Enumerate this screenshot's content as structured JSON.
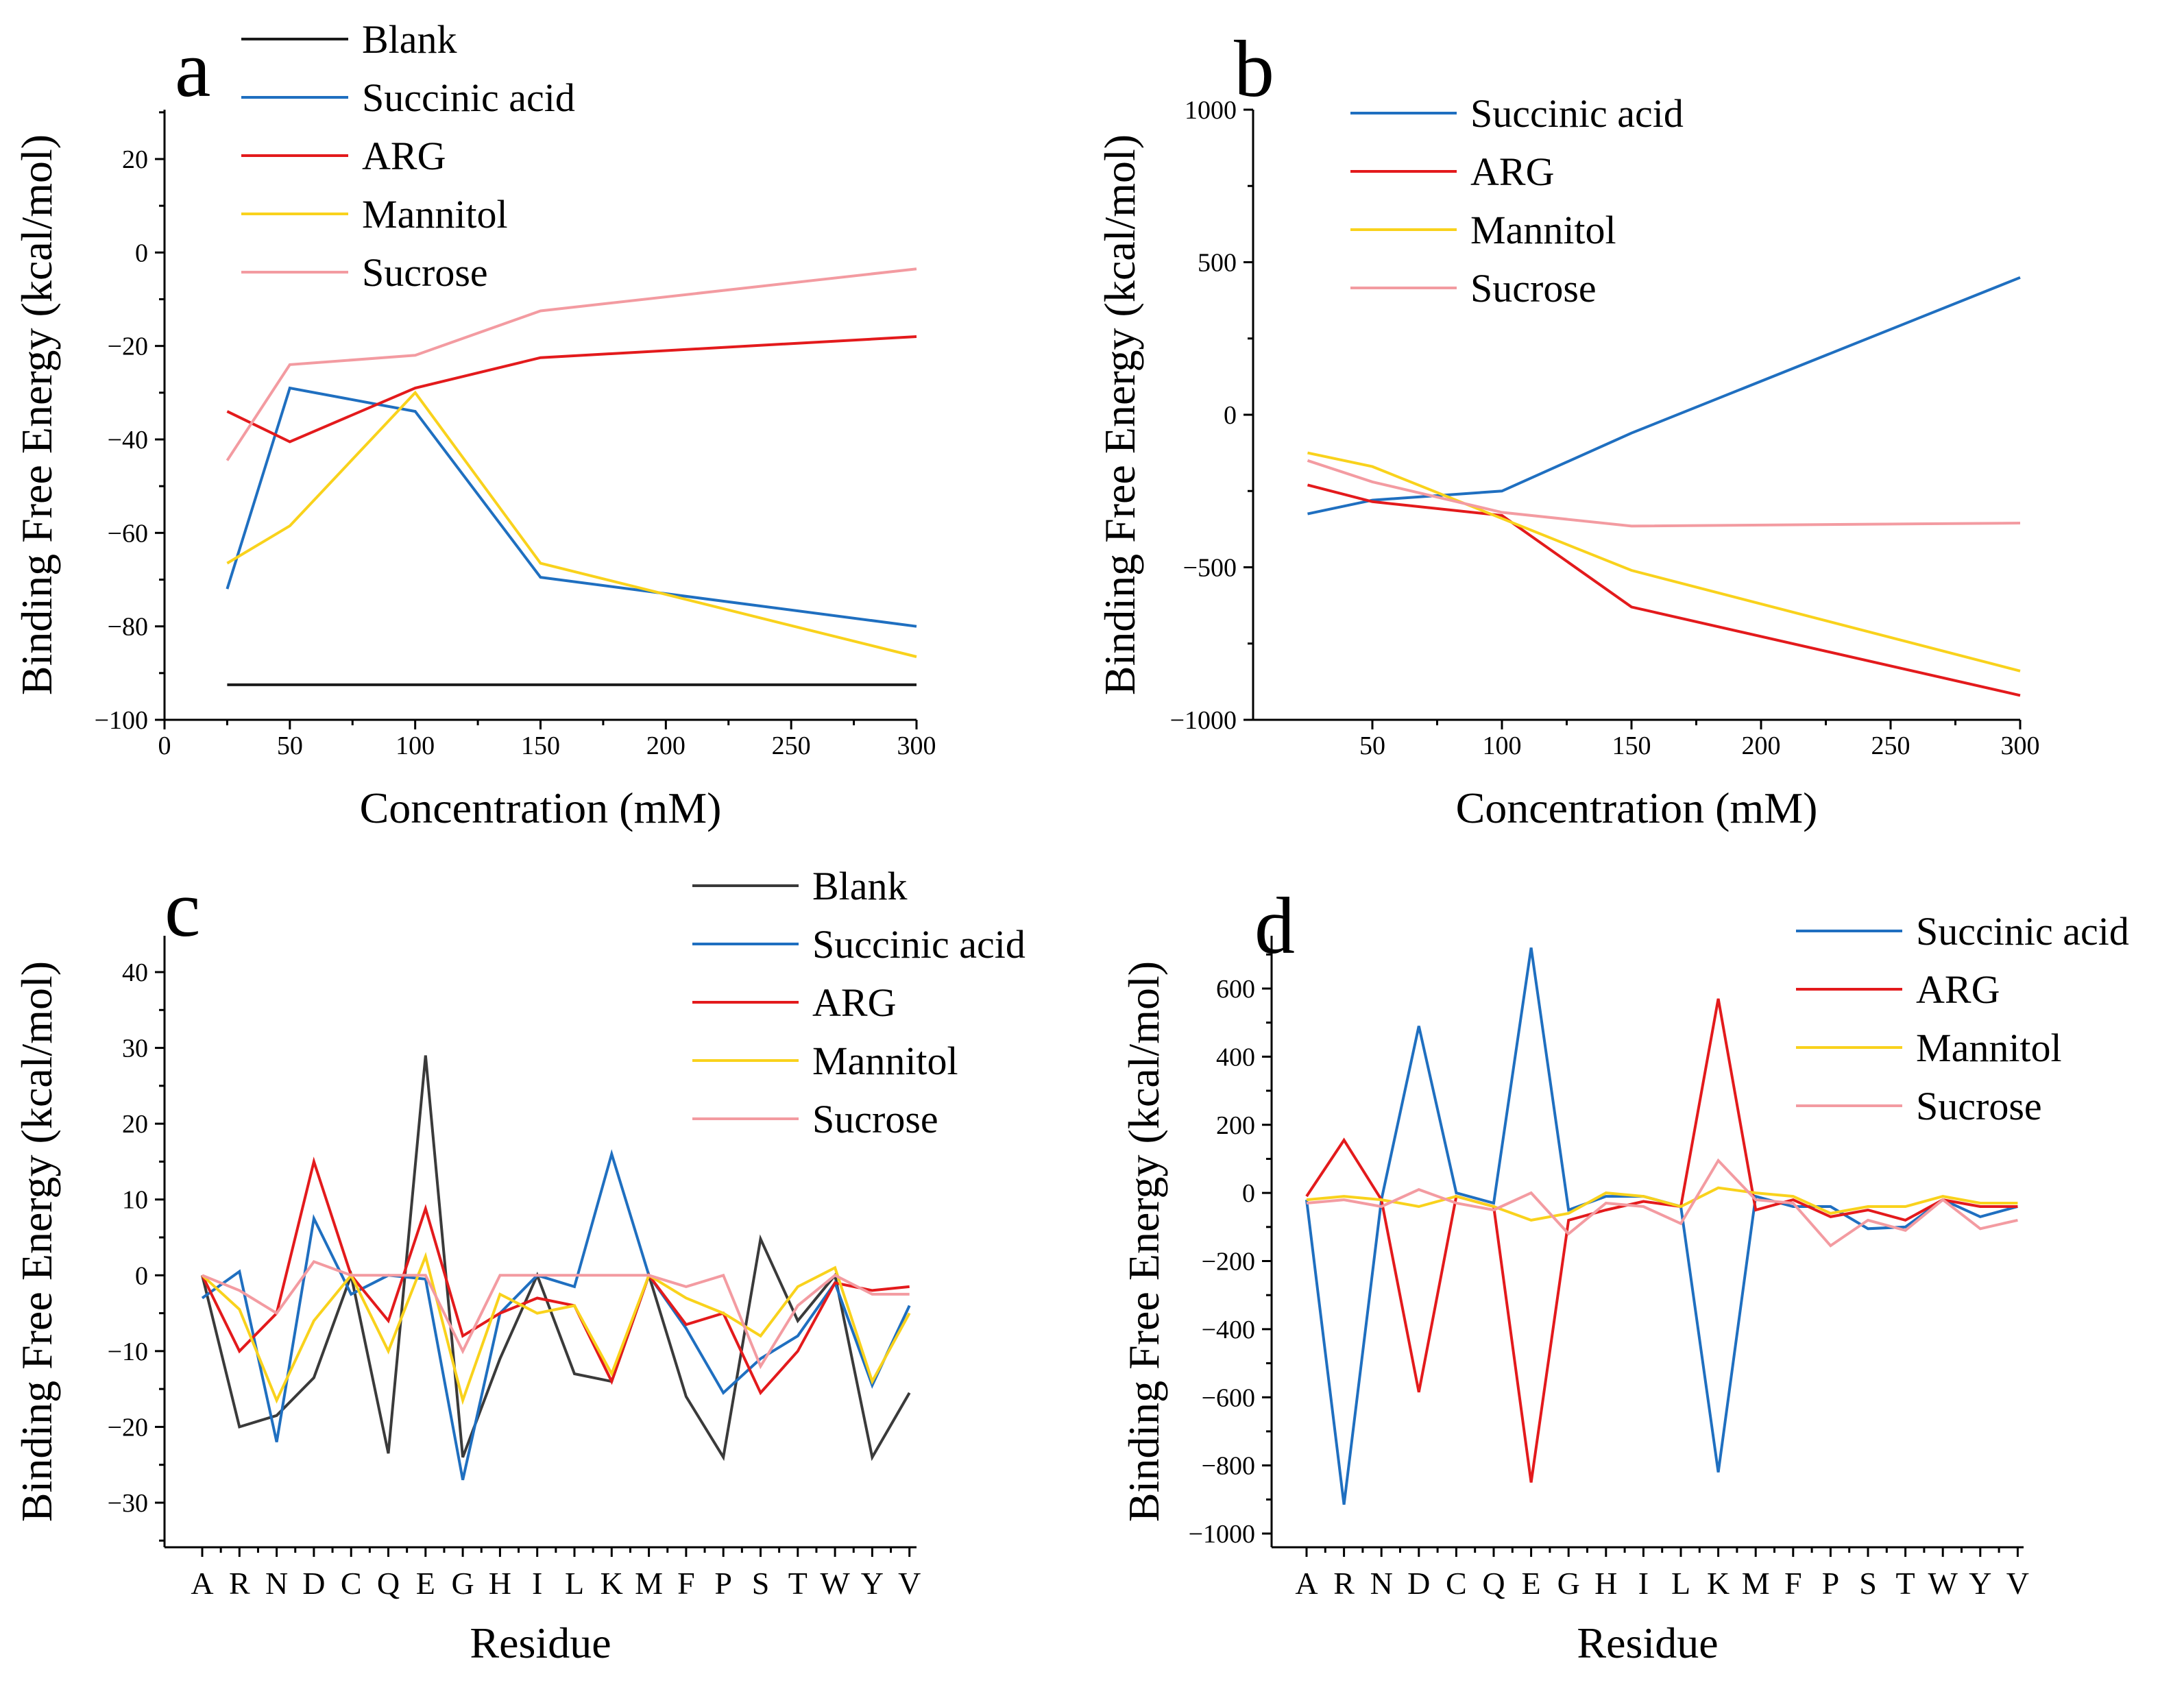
{
  "colors": {
    "Blank": "#1a1a1a",
    "Succinic acid": "#1f6fc0",
    "ARG": "#e31a1c",
    "Mannitol": "#f9d21c",
    "Sucrose": "#f39ba1",
    "Blank_c": "#3a3a3a"
  },
  "chart_data": [
    {
      "panel": "a",
      "type": "line",
      "xlabel": "Concentration (mM)",
      "ylabel": "Binding Free Energy (kcal/mol)",
      "xlim": [
        0,
        300
      ],
      "ylim": [
        -100,
        30
      ],
      "x_ticks": [
        "0",
        "50",
        "100",
        "150",
        "200",
        "250",
        "300"
      ],
      "y_ticks": [
        "20",
        "0",
        "−20",
        "−40",
        "−60",
        "−80",
        "−100"
      ],
      "legend": [
        "Blank",
        "Succinic acid",
        "ARG",
        "Mannitol",
        "Sucrose"
      ],
      "x": [
        25,
        50,
        100,
        150,
        300
      ],
      "series": [
        {
          "name": "Blank",
          "values": [
            -92.5,
            -92.5,
            -92.5,
            -92.5,
            -92.5
          ]
        },
        {
          "name": "Succinic acid",
          "values": [
            -72,
            -29,
            -34,
            -69.5,
            -80
          ]
        },
        {
          "name": "ARG",
          "values": [
            -34,
            -40.5,
            -29,
            -22.5,
            -18
          ]
        },
        {
          "name": "Mannitol",
          "values": [
            -66.5,
            -58.5,
            -30,
            -66.5,
            -86.5
          ]
        },
        {
          "name": "Sucrose",
          "values": [
            -44.5,
            -24,
            -22,
            -12.5,
            -3.5
          ]
        }
      ]
    },
    {
      "panel": "b",
      "type": "line",
      "xlabel": "Concentration (mM)",
      "ylabel": "Binding Free Energy (kcal/mol)",
      "xlim": [
        15,
        300
      ],
      "ylim": [
        -1000,
        1000
      ],
      "x_ticks": [
        "50",
        "100",
        "150",
        "200",
        "250",
        "300"
      ],
      "y_ticks": [
        "1000",
        "500",
        "0",
        "−500",
        "−1000"
      ],
      "legend": [
        "Succinic acid",
        "ARG",
        "Mannitol",
        "Sucrose"
      ],
      "x": [
        25,
        50,
        100,
        150,
        300
      ],
      "series": [
        {
          "name": "Succinic acid",
          "values": [
            -325,
            -280,
            -250,
            -60,
            450
          ]
        },
        {
          "name": "ARG",
          "values": [
            -230,
            -285,
            -330,
            -630,
            -920
          ]
        },
        {
          "name": "Mannitol",
          "values": [
            -125,
            -170,
            -340,
            -510,
            -840
          ]
        },
        {
          "name": "Sucrose",
          "values": [
            -150,
            -220,
            -320,
            -365,
            -355
          ]
        }
      ]
    },
    {
      "panel": "c",
      "type": "line",
      "xlabel": "Residue",
      "ylabel": "Binding Free Energy (kcal/mol)",
      "ylim": [
        -35,
        45
      ],
      "categories": [
        "A",
        "R",
        "N",
        "D",
        "C",
        "Q",
        "E",
        "G",
        "H",
        "I",
        "L",
        "K",
        "M",
        "F",
        "P",
        "S",
        "T",
        "W",
        "Y",
        "V"
      ],
      "y_ticks": [
        "40",
        "30",
        "20",
        "10",
        "0",
        "−10",
        "−20",
        "−30"
      ],
      "legend": [
        "Blank",
        "Succinic acid",
        "ARG",
        "Mannitol",
        "Sucrose"
      ],
      "series": [
        {
          "name": "Blank",
          "values": [
            0,
            -20,
            -18.5,
            -13.5,
            0,
            -23.5,
            29,
            -24,
            -11,
            0,
            -13,
            -14,
            0,
            -16,
            -24,
            4.8,
            -6,
            0,
            -24,
            -15.5
          ]
        },
        {
          "name": "Succinic acid",
          "values": [
            -3,
            0.5,
            -22,
            7.5,
            -2.5,
            0,
            -0.5,
            -27,
            -5,
            0,
            -1.5,
            16,
            0,
            -7,
            -15.5,
            -11,
            -8,
            -1,
            -14.5,
            -4
          ]
        },
        {
          "name": "ARG",
          "values": [
            0,
            -10,
            -5,
            15,
            0,
            -6,
            8.8,
            -8,
            -5,
            -3,
            -4,
            -14,
            0,
            -6.5,
            -5,
            -15.5,
            -10,
            -1,
            -2,
            -1.5
          ]
        },
        {
          "name": "Mannitol",
          "values": [
            0,
            -4.5,
            -16.5,
            -6,
            0,
            -10,
            2.5,
            -16.5,
            -2.5,
            -5,
            -4,
            -13,
            0,
            -3,
            -5,
            -8,
            -1.5,
            1,
            -14,
            -5
          ]
        },
        {
          "name": "Sucrose",
          "values": [
            0,
            -2,
            -5,
            1.8,
            0,
            0,
            0,
            -10,
            0,
            0,
            0,
            0,
            0,
            -1.5,
            0,
            -12,
            -4,
            0,
            -2.5,
            -2.5
          ]
        }
      ]
    },
    {
      "panel": "d",
      "type": "line",
      "xlabel": "Residue",
      "ylabel": "Binding Free Energy (kcal/mol)",
      "ylim": [
        -1050,
        720
      ],
      "categories": [
        "A",
        "R",
        "N",
        "D",
        "C",
        "Q",
        "E",
        "G",
        "H",
        "I",
        "L",
        "K",
        "M",
        "F",
        "P",
        "S",
        "T",
        "W",
        "Y",
        "V"
      ],
      "y_ticks": [
        "600",
        "400",
        "200",
        "0",
        "−200",
        "−400",
        "−600",
        "−800",
        "−1000"
      ],
      "legend": [
        "Succinic acid",
        "ARG",
        "Mannitol",
        "Sucrose"
      ],
      "series": [
        {
          "name": "Succinic acid",
          "values": [
            -20,
            -915,
            -20,
            490,
            0,
            -30,
            720,
            -50,
            -10,
            -10,
            -40,
            -820,
            -10,
            -40,
            -40,
            -105,
            -100,
            -20,
            -70,
            -40
          ]
        },
        {
          "name": "ARG",
          "values": [
            -10,
            155,
            -20,
            -585,
            -10,
            -40,
            -850,
            -80,
            -50,
            -25,
            -40,
            570,
            -50,
            -20,
            -70,
            -50,
            -80,
            -20,
            -40,
            -40
          ]
        },
        {
          "name": "Mannitol",
          "values": [
            -20,
            -10,
            -20,
            -40,
            -10,
            -40,
            -80,
            -60,
            0,
            -10,
            -40,
            15,
            0,
            -10,
            -60,
            -40,
            -40,
            -10,
            -30,
            -30
          ]
        },
        {
          "name": "Sucrose",
          "values": [
            -30,
            -20,
            -40,
            10,
            -30,
            -50,
            0,
            -120,
            -30,
            -40,
            -90,
            95,
            -20,
            -30,
            -155,
            -80,
            -110,
            -20,
            -105,
            -80
          ]
        }
      ]
    }
  ]
}
